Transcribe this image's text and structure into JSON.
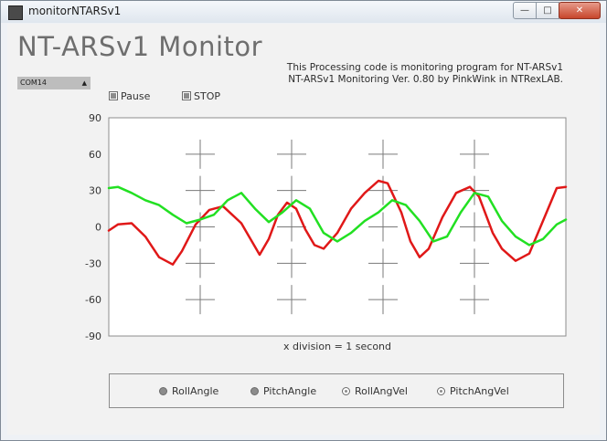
{
  "window": {
    "title": "monitorNTARSv1",
    "min_glyph": "—",
    "max_glyph": "□",
    "close_glyph": "✕"
  },
  "app": {
    "title": "NT-ARSv1 Monitor",
    "desc_line1": "This Processing code is monitoring program for NT-ARSv1",
    "desc_line2": "NT-ARSv1  Monitoring Ver. 0.80 by PinkWink in NTRexLAB."
  },
  "port": {
    "selected": "COM14",
    "arrow_glyph": "▲"
  },
  "controls": {
    "pause_label": "Pause",
    "stop_label": "STOP"
  },
  "chart_data": {
    "type": "line",
    "y_ticks": [
      "90",
      "60",
      "30",
      "0",
      "-30",
      "-60",
      "-90"
    ],
    "ylim": [
      -90,
      90
    ],
    "xlim": [
      0,
      10
    ],
    "xlabel": "x division = 1 second",
    "colors": {
      "red": "#e01818",
      "green": "#22e022"
    },
    "series": [
      {
        "color": "red",
        "x": [
          0,
          0.2,
          0.5,
          0.8,
          1.1,
          1.4,
          1.6,
          1.9,
          2.2,
          2.5,
          2.7,
          2.9,
          3.1,
          3.3,
          3.5,
          3.7,
          3.9,
          4.1,
          4.3,
          4.5,
          4.7,
          5.0,
          5.3,
          5.6,
          5.9,
          6.1,
          6.4,
          6.6,
          6.8,
          7.0,
          7.3,
          7.6,
          7.9,
          8.1,
          8.4,
          8.6,
          8.9,
          9.2,
          9.5,
          9.8,
          10
        ],
        "y": [
          -3,
          2,
          3,
          -8,
          -25,
          -31,
          -20,
          2,
          14,
          17,
          10,
          3,
          -10,
          -23,
          -10,
          10,
          20,
          15,
          -2,
          -15,
          -18,
          -5,
          15,
          28,
          38,
          36,
          12,
          -12,
          -25,
          -18,
          8,
          28,
          33,
          25,
          -5,
          -18,
          -28,
          -22,
          5,
          32,
          33
        ]
      },
      {
        "color": "green",
        "x": [
          0,
          0.2,
          0.5,
          0.8,
          1.1,
          1.4,
          1.7,
          2.0,
          2.3,
          2.6,
          2.9,
          3.2,
          3.5,
          3.8,
          4.1,
          4.4,
          4.7,
          5.0,
          5.3,
          5.6,
          5.9,
          6.2,
          6.5,
          6.8,
          7.1,
          7.4,
          7.7,
          8.0,
          8.3,
          8.6,
          8.9,
          9.2,
          9.5,
          9.8,
          10
        ],
        "y": [
          32,
          33,
          28,
          22,
          18,
          10,
          3,
          6,
          10,
          22,
          28,
          15,
          4,
          12,
          22,
          15,
          -5,
          -12,
          -5,
          5,
          12,
          22,
          18,
          5,
          -12,
          -8,
          12,
          28,
          25,
          5,
          -8,
          -15,
          -10,
          2,
          6
        ]
      }
    ]
  },
  "legend": {
    "items": [
      {
        "label": "RollAngle",
        "state": "filled"
      },
      {
        "label": "PitchAngle",
        "state": "filled"
      },
      {
        "label": "RollAngVel",
        "state": "hollow"
      },
      {
        "label": "PitchAngVel",
        "state": "hollow"
      }
    ]
  }
}
